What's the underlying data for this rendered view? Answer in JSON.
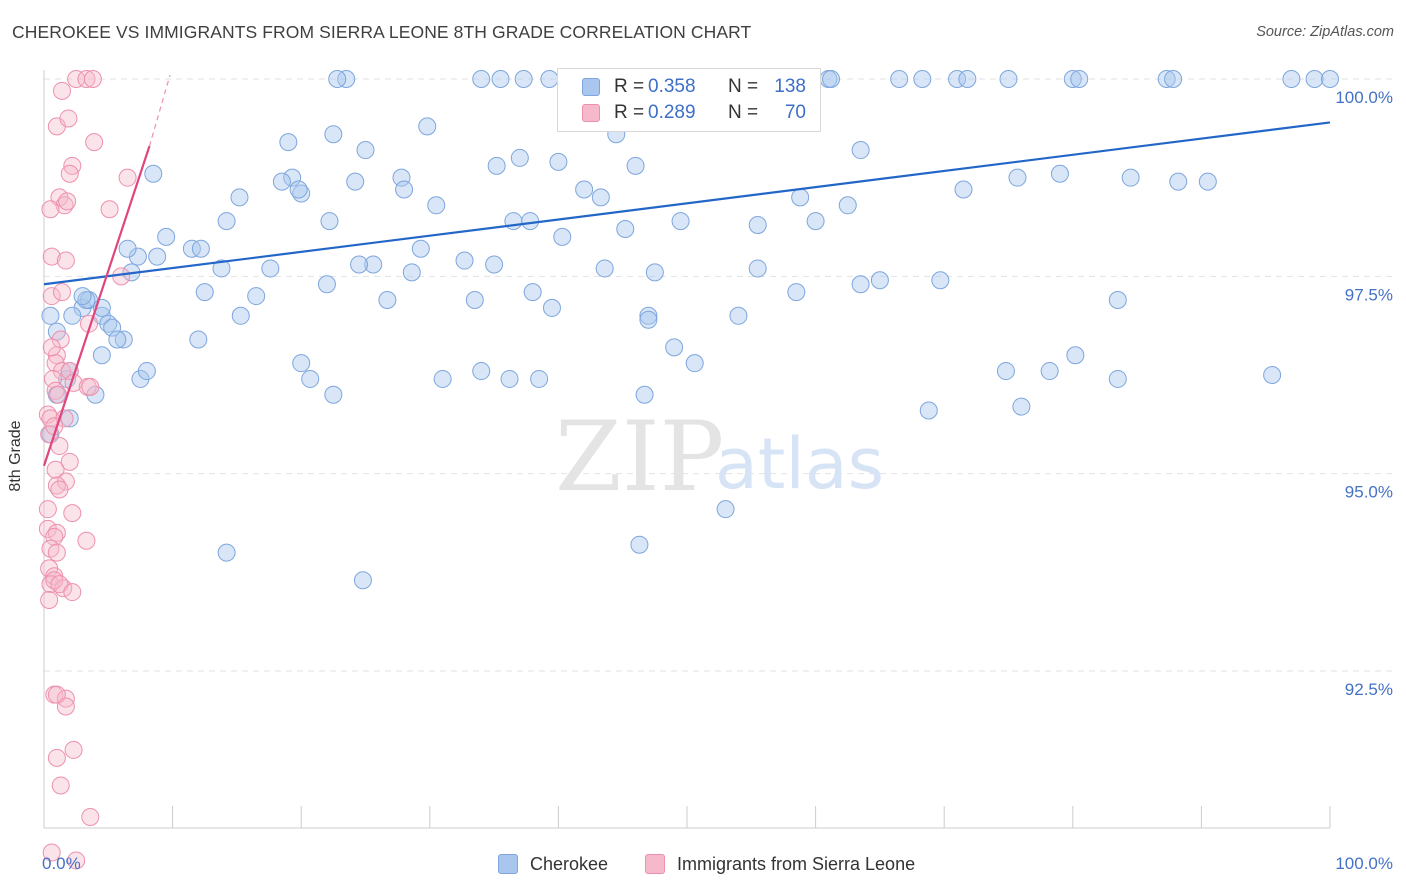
{
  "header": {
    "title": "CHEROKEE VS IMMIGRANTS FROM SIERRA LEONE 8TH GRADE CORRELATION CHART",
    "source": "Source: ZipAtlas.com"
  },
  "legend": {
    "rows": [
      {
        "r_label": "R =",
        "r_value": "0.358",
        "n_label": "N =",
        "n_value": "138"
      },
      {
        "r_label": "R =",
        "r_value": "0.289",
        "n_label": "N =",
        "n_value": "70"
      }
    ]
  },
  "watermark": {
    "zip": "ZIP",
    "atlas": "atlas"
  },
  "colors": {
    "blue_fill": "#a9c7ee",
    "blue_stroke": "#7ea6dd",
    "blue_line": "#2266c8",
    "pink_fill": "#f6b8cb",
    "pink_stroke": "#ee90ad",
    "pink_line": "#e0457c",
    "tick_label": "#4472c4",
    "grid": "#e2e2e2"
  },
  "chart_data": {
    "type": "scatter",
    "title": "CHEROKEE VS IMMIGRANTS FROM SIERRA LEONE 8TH GRADE CORRELATION CHART",
    "xlabel": "",
    "ylabel": "8th Grade",
    "xlim": [
      0,
      100
    ],
    "ylim": [
      90.2,
      100.3
    ],
    "x_tick_labels": [
      "0.0%",
      "100.0%"
    ],
    "y_ticks": [
      92.5,
      95.0,
      97.5,
      100.0
    ],
    "y_tick_labels": [
      "92.5%",
      "95.0%",
      "97.5%",
      "100.0%"
    ],
    "grid": true,
    "legend_position": "top-center",
    "series": [
      {
        "name": "Cherokee",
        "r": 0.358,
        "n": 138,
        "trend": {
          "x0": 0,
          "y0": 97.4,
          "x1": 100,
          "y1": 99.45
        },
        "points": [
          [
            23.5,
            100
          ],
          [
            34.0,
            100
          ],
          [
            35.5,
            100
          ],
          [
            37.3,
            100
          ],
          [
            39.3,
            100
          ],
          [
            47.0,
            100
          ],
          [
            50.5,
            100
          ],
          [
            52.5,
            100
          ],
          [
            57.0,
            100
          ],
          [
            61.0,
            100
          ],
          [
            61.2,
            100
          ],
          [
            66.5,
            100
          ],
          [
            68.3,
            100
          ],
          [
            71.0,
            100
          ],
          [
            71.8,
            100
          ],
          [
            75.0,
            100
          ],
          [
            80.0,
            100
          ],
          [
            80.5,
            100
          ],
          [
            87.3,
            100
          ],
          [
            87.8,
            100
          ],
          [
            97.0,
            100
          ],
          [
            98.8,
            100
          ],
          [
            100.0,
            100
          ],
          [
            22.8,
            100
          ],
          [
            1.0,
            96.8
          ],
          [
            0.5,
            95.5
          ],
          [
            22.5,
            99.3
          ],
          [
            29.8,
            99.4
          ],
          [
            44.5,
            99.3
          ],
          [
            19.0,
            99.2
          ],
          [
            25.0,
            99.1
          ],
          [
            37.0,
            99.0
          ],
          [
            40.0,
            98.95
          ],
          [
            46.0,
            98.9
          ],
          [
            63.5,
            99.1
          ],
          [
            49.5,
            98.2
          ],
          [
            35.2,
            98.9
          ],
          [
            15.2,
            98.5
          ],
          [
            19.3,
            98.75
          ],
          [
            20.0,
            98.55
          ],
          [
            8.5,
            98.8
          ],
          [
            14.2,
            98.2
          ],
          [
            18.5,
            98.7
          ],
          [
            19.8,
            98.6
          ],
          [
            27.8,
            98.75
          ],
          [
            24.2,
            98.7
          ],
          [
            28.0,
            98.6
          ],
          [
            30.5,
            98.4
          ],
          [
            22.2,
            98.2
          ],
          [
            37.8,
            98.2
          ],
          [
            40.3,
            98.0
          ],
          [
            42.0,
            98.6
          ],
          [
            43.3,
            98.5
          ],
          [
            45.2,
            98.1
          ],
          [
            36.5,
            98.2
          ],
          [
            55.5,
            98.15
          ],
          [
            60.0,
            98.2
          ],
          [
            62.5,
            98.4
          ],
          [
            71.5,
            98.6
          ],
          [
            75.7,
            98.75
          ],
          [
            79.0,
            98.8
          ],
          [
            84.5,
            98.75
          ],
          [
            58.8,
            98.5
          ],
          [
            88.2,
            98.7
          ],
          [
            90.5,
            98.7
          ],
          [
            11.5,
            97.85
          ],
          [
            13.8,
            97.6
          ],
          [
            12.2,
            97.85
          ],
          [
            9.5,
            98.0
          ],
          [
            7.3,
            97.75
          ],
          [
            6.5,
            97.85
          ],
          [
            6.8,
            97.55
          ],
          [
            8.8,
            97.75
          ],
          [
            16.5,
            97.25
          ],
          [
            17.6,
            97.6
          ],
          [
            22.0,
            97.4
          ],
          [
            25.6,
            97.65
          ],
          [
            28.6,
            97.55
          ],
          [
            32.7,
            97.7
          ],
          [
            24.5,
            97.65
          ],
          [
            26.7,
            97.2
          ],
          [
            35.0,
            97.65
          ],
          [
            38.0,
            97.3
          ],
          [
            39.5,
            97.1
          ],
          [
            33.5,
            97.2
          ],
          [
            29.3,
            97.85
          ],
          [
            43.6,
            97.6
          ],
          [
            47.0,
            97.0
          ],
          [
            47.5,
            97.55
          ],
          [
            58.5,
            97.3
          ],
          [
            63.5,
            97.4
          ],
          [
            65.0,
            97.45
          ],
          [
            69.7,
            97.45
          ],
          [
            47.0,
            96.95
          ],
          [
            83.5,
            97.2
          ],
          [
            54.0,
            97.0
          ],
          [
            1.8,
            96.2
          ],
          [
            4.5,
            97.0
          ],
          [
            5.0,
            96.9
          ],
          [
            6.2,
            96.7
          ],
          [
            3.0,
            97.1
          ],
          [
            3.5,
            97.2
          ],
          [
            2.2,
            97.0
          ],
          [
            4.5,
            96.5
          ],
          [
            12.0,
            96.7
          ],
          [
            12.5,
            97.3
          ],
          [
            15.3,
            97.0
          ],
          [
            20.0,
            96.4
          ],
          [
            20.7,
            96.2
          ],
          [
            22.5,
            96.0
          ],
          [
            31.0,
            96.2
          ],
          [
            34.0,
            96.3
          ],
          [
            36.2,
            96.2
          ],
          [
            38.5,
            96.2
          ],
          [
            46.7,
            96.0
          ],
          [
            49.0,
            96.6
          ],
          [
            50.6,
            96.4
          ],
          [
            74.8,
            96.3
          ],
          [
            78.2,
            96.3
          ],
          [
            80.2,
            96.5
          ],
          [
            83.5,
            96.2
          ],
          [
            0.5,
            97.0
          ],
          [
            2.0,
            96.3
          ],
          [
            1.0,
            96.0
          ],
          [
            2.0,
            95.7
          ],
          [
            4.0,
            96.0
          ],
          [
            3.3,
            97.2
          ],
          [
            3.0,
            97.25
          ],
          [
            4.5,
            97.1
          ],
          [
            5.3,
            96.85
          ],
          [
            5.7,
            96.7
          ],
          [
            95.5,
            96.25
          ],
          [
            7.5,
            96.2
          ],
          [
            8.0,
            96.3
          ],
          [
            14.2,
            94.0
          ],
          [
            24.8,
            93.65
          ],
          [
            46.3,
            94.1
          ],
          [
            53.0,
            94.55
          ],
          [
            68.8,
            95.8
          ],
          [
            76.0,
            95.85
          ],
          [
            55.5,
            97.6
          ]
        ]
      },
      {
        "name": "Immigrants from Sierra Leone",
        "r": 0.289,
        "n": 70,
        "trend": {
          "x0": 0,
          "y0": 95.1,
          "x1": 8.2,
          "y1": 99.15
        },
        "trend_extension": {
          "x0": 8.2,
          "y0": 99.15,
          "x1": 9.8,
          "y1": 100.05
        },
        "points": [
          [
            2.5,
            100
          ],
          [
            3.3,
            100
          ],
          [
            3.8,
            100
          ],
          [
            1.4,
            99.85
          ],
          [
            1.0,
            99.4
          ],
          [
            1.9,
            99.5
          ],
          [
            3.9,
            99.2
          ],
          [
            2.2,
            98.9
          ],
          [
            2.0,
            98.8
          ],
          [
            6.5,
            98.75
          ],
          [
            1.2,
            98.5
          ],
          [
            1.6,
            98.4
          ],
          [
            0.5,
            98.35
          ],
          [
            1.8,
            98.45
          ],
          [
            5.1,
            98.35
          ],
          [
            0.6,
            97.75
          ],
          [
            1.7,
            97.7
          ],
          [
            6.0,
            97.5
          ],
          [
            0.6,
            97.25
          ],
          [
            3.5,
            96.9
          ],
          [
            1.3,
            96.7
          ],
          [
            1.0,
            96.5
          ],
          [
            0.9,
            96.4
          ],
          [
            1.4,
            96.3
          ],
          [
            0.7,
            96.2
          ],
          [
            2.0,
            96.3
          ],
          [
            2.3,
            96.15
          ],
          [
            3.4,
            96.1
          ],
          [
            0.9,
            96.05
          ],
          [
            1.1,
            96.0
          ],
          [
            0.3,
            95.75
          ],
          [
            0.5,
            95.7
          ],
          [
            1.6,
            95.7
          ],
          [
            0.4,
            95.5
          ],
          [
            1.2,
            95.35
          ],
          [
            2.0,
            95.15
          ],
          [
            0.9,
            95.05
          ],
          [
            1.7,
            94.9
          ],
          [
            1.0,
            94.85
          ],
          [
            0.3,
            94.55
          ],
          [
            2.2,
            94.5
          ],
          [
            0.3,
            94.3
          ],
          [
            1.0,
            94.25
          ],
          [
            0.8,
            94.2
          ],
          [
            3.3,
            94.15
          ],
          [
            0.5,
            94.05
          ],
          [
            1.0,
            94.0
          ],
          [
            0.4,
            93.8
          ],
          [
            0.8,
            93.7
          ],
          [
            0.5,
            93.6
          ],
          [
            1.5,
            93.55
          ],
          [
            0.4,
            93.4
          ],
          [
            0.8,
            92.2
          ],
          [
            1.7,
            92.15
          ],
          [
            1.7,
            92.05
          ],
          [
            2.3,
            91.5
          ],
          [
            1.0,
            91.4
          ],
          [
            1.3,
            91.05
          ],
          [
            3.6,
            90.65
          ],
          [
            2.5,
            90.1
          ],
          [
            1.0,
            92.2
          ],
          [
            1.2,
            94.8
          ],
          [
            0.8,
            95.6
          ],
          [
            0.6,
            96.6
          ],
          [
            1.4,
            97.3
          ],
          [
            0.8,
            93.65
          ],
          [
            1.2,
            93.6
          ],
          [
            2.2,
            93.5
          ],
          [
            0.6,
            90.2
          ],
          [
            3.6,
            96.1
          ]
        ]
      }
    ]
  },
  "bottom_legend": {
    "items": [
      {
        "label": "Cherokee"
      },
      {
        "label": "Immigrants from Sierra Leone"
      }
    ]
  }
}
